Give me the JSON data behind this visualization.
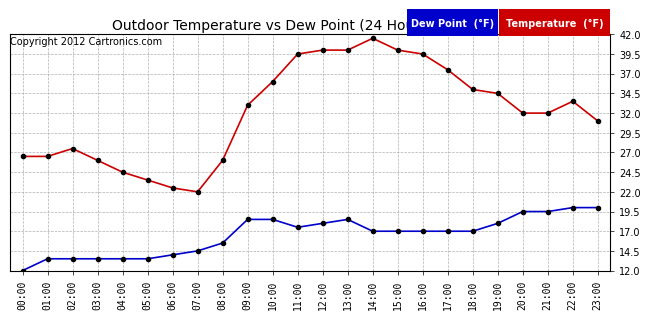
{
  "title": "Outdoor Temperature vs Dew Point (24 Hours) 20121113",
  "copyright": "Copyright 2012 Cartronics.com",
  "x_labels": [
    "00:00",
    "01:00",
    "02:00",
    "03:00",
    "04:00",
    "05:00",
    "06:00",
    "07:00",
    "08:00",
    "09:00",
    "10:00",
    "11:00",
    "12:00",
    "13:00",
    "14:00",
    "15:00",
    "16:00",
    "17:00",
    "18:00",
    "19:00",
    "20:00",
    "21:00",
    "22:00",
    "23:00"
  ],
  "temperature": [
    26.5,
    26.5,
    27.5,
    26.0,
    24.5,
    23.5,
    22.5,
    22.0,
    26.0,
    33.0,
    36.0,
    39.5,
    40.0,
    40.0,
    41.5,
    40.0,
    39.5,
    37.5,
    35.0,
    34.5,
    32.0,
    32.0,
    33.5,
    31.0
  ],
  "dew_point": [
    12.0,
    13.5,
    13.5,
    13.5,
    13.5,
    13.5,
    14.0,
    14.5,
    15.5,
    18.5,
    18.5,
    17.5,
    18.0,
    18.5,
    17.0,
    17.0,
    17.0,
    17.0,
    17.0,
    18.0,
    19.5,
    19.5,
    20.0,
    20.0
  ],
  "temp_color": "#cc0000",
  "dew_color": "#0000cc",
  "bg_color": "#ffffff",
  "grid_color": "#b0b0b0",
  "ylim": [
    12.0,
    42.0
  ],
  "yticks": [
    12.0,
    14.5,
    17.0,
    19.5,
    22.0,
    24.5,
    27.0,
    29.5,
    32.0,
    34.5,
    37.0,
    39.5,
    42.0
  ],
  "legend_dew_bg": "#0000cc",
  "legend_temp_bg": "#cc0000",
  "legend_text_color": "#ffffff",
  "marker_color": "#000000",
  "marker_size": 3,
  "line_width": 1.2,
  "title_fontsize": 10,
  "tick_fontsize": 7,
  "copyright_fontsize": 7
}
